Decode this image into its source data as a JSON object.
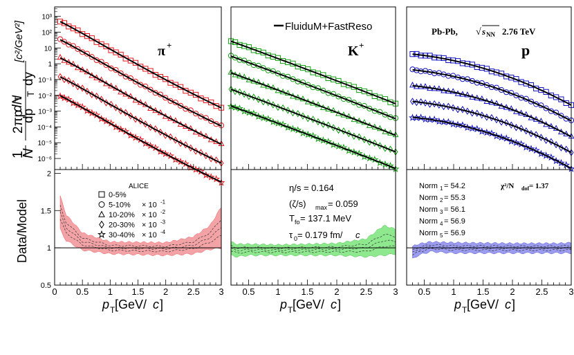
{
  "figure": {
    "legend_model": "FluiduM+FastReso",
    "system": "Pb-Pb,",
    "energy": "2.76 TeV",
    "energy_label": "NN"
  },
  "axes": {
    "x_label": "p",
    "x_sub": "T",
    "x_unit": " [GeV/",
    "x_unit_c": "c",
    "x_unit_end": "]",
    "y_top_label": "[c²/GeV²]",
    "y_top_label_parts": [
      "1",
      "N",
      "2πp",
      "dp",
      "dy",
      "dN",
      "T",
      "T"
    ],
    "y_bottom_label": "Data/Model"
  },
  "alice_legend": {
    "title": "ALICE",
    "entries": [
      {
        "label": "0-5%",
        "scale": "",
        "marker": "square"
      },
      {
        "label": "5-10%",
        "scale": "× 10",
        "exp": "-1",
        "marker": "circle"
      },
      {
        "label": "10-20%",
        "scale": "× 10",
        "exp": "-2",
        "marker": "triangle"
      },
      {
        "label": "20-30%",
        "scale": "× 10",
        "exp": "-3",
        "marker": "diamond"
      },
      {
        "label": "30-40%",
        "scale": "× 10",
        "exp": "-4",
        "marker": "star"
      }
    ]
  },
  "params": {
    "eta_s": "η/s = 0.164",
    "zeta_s": "(ζ/s)",
    "zeta_s_sub": "max",
    "zeta_s_val": " = 0.059",
    "tfo": "T",
    "tfo_sub": "fo",
    "tfo_val": " = 137.1 MeV",
    "tau0": "τ",
    "tau0_sub": "0",
    "tau0_val": " = 0.179 fm/",
    "tau0_c": "c"
  },
  "norms": {
    "chi2": "χ²/N",
    "chi2_sub": "dof",
    "chi2_val": " = 1.37",
    "items": [
      {
        "label": "Norm",
        "sub": "1",
        "value": " = 54.2"
      },
      {
        "label": "Norm",
        "sub": "2",
        "value": " = 55.3"
      },
      {
        "label": "Norm",
        "sub": "3",
        "value": " = 56.1"
      },
      {
        "label": "Norm",
        "sub": "4",
        "value": " = 56.9"
      },
      {
        "label": "Norm",
        "sub": "5",
        "value": " = 56.9"
      }
    ]
  },
  "chart_data": {
    "type": "scatter",
    "panels": [
      {
        "particle": "π",
        "charge": "+",
        "color": "#e8141b",
        "fill": "#f3a3a6",
        "x_range": [
          0.1,
          3.0
        ],
        "x_axis": [
          0,
          3
        ],
        "x_ticks": [
          "0",
          "0.5",
          "1",
          "1.5",
          "2",
          "2.5",
          "3"
        ],
        "offsets_log10": [
          3.15,
          2.0,
          0.85,
          -0.35,
          -1.55
        ],
        "shape_scale": 6.0,
        "ratio_band": {
          "x": [
            0.1,
            0.2,
            0.5,
            1.0,
            2.0,
            2.5,
            2.8,
            3.0
          ],
          "low": [
            1.25,
            1.1,
            0.97,
            0.92,
            0.9,
            0.92,
            0.98,
            1.0
          ],
          "high": [
            1.7,
            1.45,
            1.2,
            1.08,
            1.07,
            1.15,
            1.3,
            1.55
          ]
        }
      },
      {
        "particle": "K",
        "charge": "+",
        "color": "#10a010",
        "fill": "#8ee88e",
        "x_range": [
          0.2,
          3.0
        ],
        "x_axis": [
          0.2,
          3
        ],
        "x_ticks": [
          "0.5",
          "1",
          "1.5",
          "2",
          "2.5",
          "3"
        ],
        "offsets_log10": [
          1.7,
          0.75,
          -0.3,
          -1.35,
          -2.4
        ],
        "shape_scale": 4.2,
        "ratio_band": {
          "x": [
            0.2,
            0.3,
            0.5,
            1.0,
            2.0,
            2.5,
            2.8,
            3.0
          ],
          "low": [
            0.9,
            0.88,
            0.9,
            0.9,
            0.9,
            0.88,
            0.9,
            0.92
          ],
          "high": [
            1.08,
            1.05,
            1.05,
            1.04,
            1.06,
            1.12,
            1.3,
            1.25
          ]
        }
      },
      {
        "particle": "p",
        "charge": "",
        "color": "#1010c0",
        "fill": "#9b9bef",
        "x_range": [
          0.3,
          3.0
        ],
        "x_axis": [
          0.2,
          3
        ],
        "x_ticks": [
          "0.5",
          "1",
          "1.5",
          "2",
          "2.5",
          "3"
        ],
        "offsets_log10": [
          0.7,
          -0.3,
          -1.3,
          -2.3,
          -3.3
        ],
        "shape_scale": 2.7,
        "ratio_band": {
          "x": [
            0.3,
            0.4,
            0.6,
            1.0,
            2.0,
            2.5,
            2.8,
            3.0
          ],
          "low": [
            0.85,
            0.9,
            0.95,
            0.93,
            0.93,
            0.93,
            0.93,
            0.93
          ],
          "high": [
            1.02,
            1.05,
            1.08,
            1.07,
            1.06,
            1.06,
            1.06,
            1.07
          ]
        }
      }
    ],
    "y_top": {
      "log": true,
      "range_log10": [
        -6.7,
        3.6
      ],
      "ticks": [
        "10³",
        "10²",
        "10",
        "1",
        "10⁻¹",
        "10⁻²",
        "10⁻³",
        "10⁻⁴",
        "10⁻⁵",
        "10⁻⁶"
      ],
      "ticks_log10": [
        3,
        2,
        1,
        0,
        -1,
        -2,
        -3,
        -4,
        -5,
        -6
      ]
    },
    "y_bottom": {
      "range": [
        0.5,
        2.05
      ],
      "ticks": [
        "0.5",
        "1",
        "1.5",
        "2"
      ],
      "ticks_val": [
        0.5,
        1,
        1.5,
        2
      ]
    },
    "ratio_reference": 1
  }
}
